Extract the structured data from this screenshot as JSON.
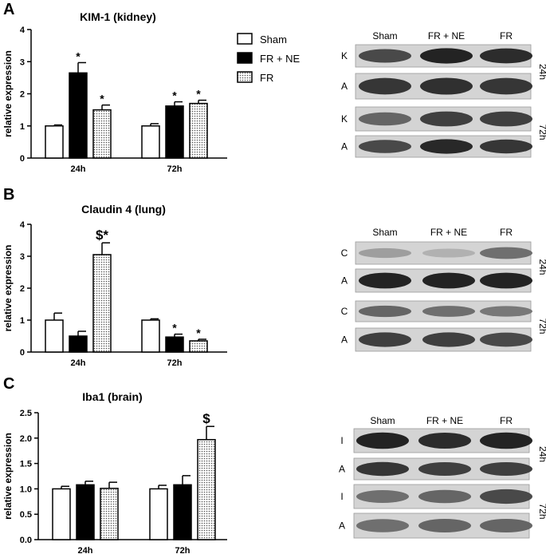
{
  "panels": [
    {
      "letter": "A"
    },
    {
      "letter": "B"
    },
    {
      "letter": "C"
    }
  ],
  "legend": {
    "items": [
      {
        "label": "Sham",
        "fill": "white"
      },
      {
        "label": "FR + NE",
        "fill": "black"
      },
      {
        "label": "FR",
        "fill": "dots"
      }
    ]
  },
  "chart_data": [
    {
      "type": "bar",
      "title": "KIM-1 (kidney)",
      "ylabel": "relative expression",
      "ylim": [
        0,
        4
      ],
      "yticks": [
        "0",
        "1",
        "2",
        "3",
        "4"
      ],
      "categories": [
        "24h",
        "72h"
      ],
      "series": [
        {
          "name": "Sham",
          "values": [
            1.0,
            1.0
          ],
          "errors": [
            0.03,
            0.07
          ],
          "markers": [
            "",
            ""
          ]
        },
        {
          "name": "FR + NE",
          "values": [
            2.65,
            1.62
          ],
          "errors": [
            0.32,
            0.13
          ],
          "markers": [
            "*",
            "*"
          ]
        },
        {
          "name": "FR",
          "values": [
            1.5,
            1.7
          ],
          "errors": [
            0.15,
            0.1
          ],
          "markers": [
            "*",
            "*"
          ]
        }
      ]
    },
    {
      "type": "bar",
      "title": "Claudin 4 (lung)",
      "ylabel": "relative expression",
      "ylim": [
        0,
        4
      ],
      "yticks": [
        "0",
        "1",
        "2",
        "3",
        "4"
      ],
      "categories": [
        "24h",
        "72h"
      ],
      "series": [
        {
          "name": "Sham",
          "values": [
            1.0,
            1.0
          ],
          "errors": [
            0.22,
            0.04
          ],
          "markers": [
            "",
            ""
          ]
        },
        {
          "name": "FR + NE",
          "values": [
            0.5,
            0.47
          ],
          "errors": [
            0.15,
            0.09
          ],
          "markers": [
            "",
            "*"
          ]
        },
        {
          "name": "FR",
          "values": [
            3.05,
            0.35
          ],
          "errors": [
            0.37,
            0.05
          ],
          "markers": [
            "$*",
            "*"
          ]
        }
      ]
    },
    {
      "type": "bar",
      "title": "Iba1 (brain)",
      "ylabel": "relative expression",
      "ylim": [
        0,
        2.5
      ],
      "yticks": [
        "0.0",
        "0.5",
        "1.0",
        "1.5",
        "2.0",
        "2.5"
      ],
      "categories": [
        "24h",
        "72h"
      ],
      "series": [
        {
          "name": "Sham",
          "values": [
            1.0,
            1.0
          ],
          "errors": [
            0.05,
            0.07
          ],
          "markers": [
            "",
            ""
          ]
        },
        {
          "name": "FR + NE",
          "values": [
            1.08,
            1.08
          ],
          "errors": [
            0.07,
            0.18
          ],
          "markers": [
            "",
            ""
          ]
        },
        {
          "name": "FR",
          "values": [
            1.01,
            1.97
          ],
          "errors": [
            0.12,
            0.26
          ],
          "markers": [
            "",
            "$"
          ]
        }
      ]
    }
  ],
  "blots": [
    {
      "columns": [
        "Sham",
        "FR + NE",
        "FR"
      ],
      "groups": [
        {
          "time": "24h",
          "rows": [
            {
              "label": "K",
              "darkness": [
                0.75,
                0.95,
                0.9
              ]
            },
            {
              "label": "A",
              "darkness": [
                0.85,
                0.88,
                0.85
              ]
            }
          ]
        },
        {
          "time": "72h",
          "rows": [
            {
              "label": "K",
              "darkness": [
                0.6,
                0.8,
                0.8
              ]
            },
            {
              "label": "A",
              "darkness": [
                0.75,
                0.92,
                0.85
              ]
            }
          ]
        }
      ]
    },
    {
      "columns": [
        "Sham",
        "FR + NE",
        "FR"
      ],
      "groups": [
        {
          "time": "24h",
          "rows": [
            {
              "label": "C",
              "darkness": [
                0.3,
                0.2,
                0.55
              ]
            },
            {
              "label": "A",
              "darkness": [
                0.95,
                0.95,
                0.95
              ]
            }
          ]
        },
        {
          "time": "72h",
          "rows": [
            {
              "label": "C",
              "darkness": [
                0.6,
                0.55,
                0.5
              ]
            },
            {
              "label": "A",
              "darkness": [
                0.8,
                0.8,
                0.75
              ]
            }
          ]
        }
      ]
    },
    {
      "columns": [
        "Sham",
        "FR + NE",
        "FR"
      ],
      "groups": [
        {
          "time": "24h",
          "rows": [
            {
              "label": "I",
              "darkness": [
                0.95,
                0.9,
                0.95
              ]
            },
            {
              "label": "A",
              "darkness": [
                0.85,
                0.8,
                0.8
              ]
            }
          ]
        },
        {
          "time": "72h",
          "rows": [
            {
              "label": "I",
              "darkness": [
                0.55,
                0.6,
                0.75
              ]
            },
            {
              "label": "A",
              "darkness": [
                0.55,
                0.6,
                0.6
              ]
            }
          ]
        }
      ]
    }
  ]
}
